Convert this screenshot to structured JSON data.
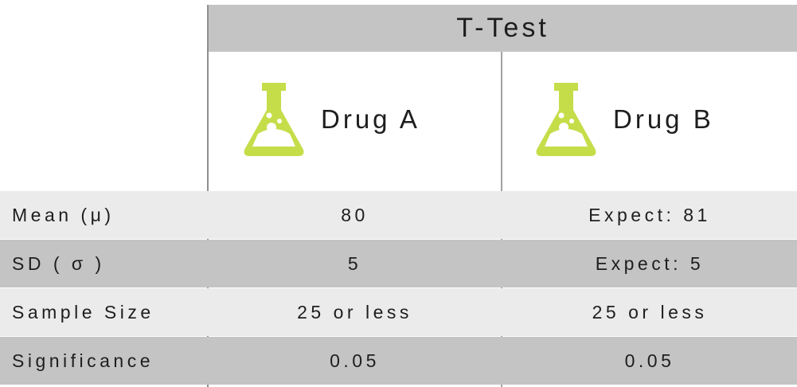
{
  "table": {
    "title": "T-Test",
    "columns": [
      {
        "name": "Drug A",
        "icon": "flask-icon",
        "icon_color": "#c6dd4a"
      },
      {
        "name": "Drug B",
        "icon": "flask-icon",
        "icon_color": "#c6dd4a"
      }
    ],
    "rows": [
      {
        "label": "Mean (μ)",
        "a": "80",
        "b": "Expect: 81"
      },
      {
        "label": "SD ( σ )",
        "a": "5",
        "b": "Expect: 5"
      },
      {
        "label": "Sample Size",
        "a": "25 or less",
        "b": "25 or less"
      },
      {
        "label": "Significance",
        "a": "0.05",
        "b": "0.05"
      }
    ]
  }
}
